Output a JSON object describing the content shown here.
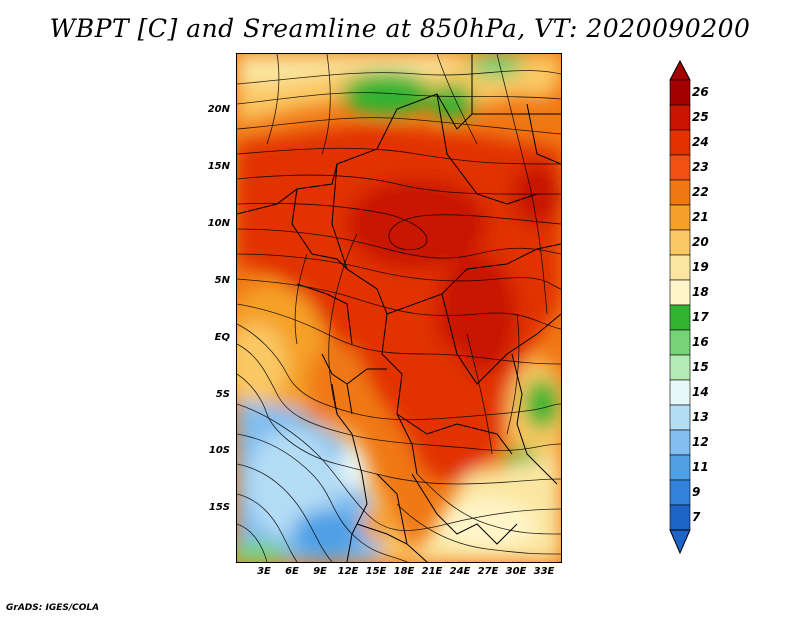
{
  "title": "WBPT [C] and Sreamline at 850hPa, VT: 2020090200",
  "credit": "GrADS: IGES/COLA",
  "lat_ticks": [
    "20N",
    "15N",
    "10N",
    "5N",
    "EQ",
    "5S",
    "10S",
    "15S"
  ],
  "lon_ticks": [
    "3E",
    "6E",
    "9E",
    "12E",
    "15E",
    "18E",
    "21E",
    "24E",
    "27E",
    "30E",
    "33E"
  ],
  "colorbar": {
    "labels": [
      "26",
      "25",
      "24",
      "23",
      "22",
      "21",
      "20",
      "19",
      "18",
      "17",
      "16",
      "15",
      "14",
      "13",
      "12",
      "11",
      "9",
      "7"
    ],
    "colors": [
      "#a50000",
      "#c81400",
      "#e13200",
      "#f05014",
      "#f07814",
      "#f5a028",
      "#fac864",
      "#fae6a0",
      "#fff5c8",
      "#32b432",
      "#78d278",
      "#b4ebb4",
      "#e6f8f8",
      "#b4dcf5",
      "#82bef0",
      "#50a0e6",
      "#3282dc",
      "#1e64c8"
    ]
  }
}
